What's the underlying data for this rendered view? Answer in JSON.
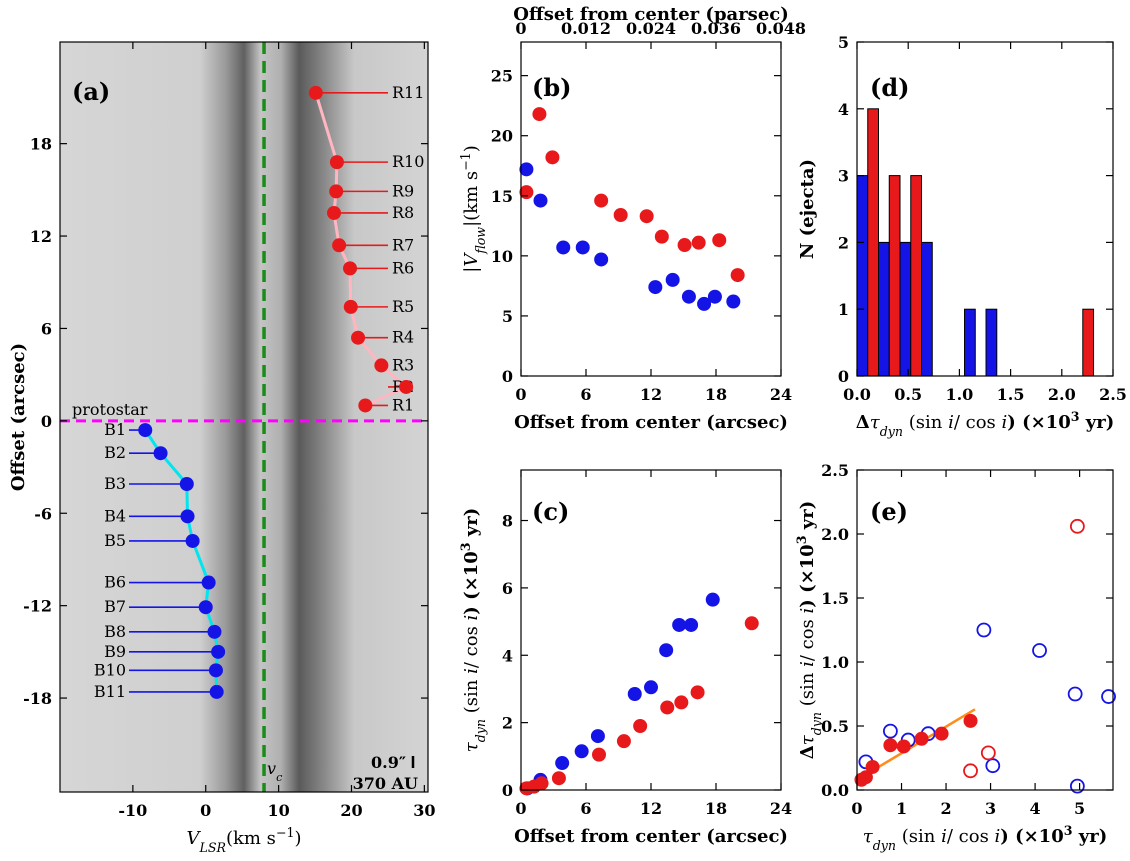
{
  "chart_data": [
    {
      "type": "scatter",
      "label": "(a)",
      "xlabel": [
        {
          "text": "V",
          "style": "it"
        },
        {
          "text": "LSR",
          "style": "sub it"
        },
        {
          "text": "(km s",
          "style": "rm"
        },
        {
          "text": "−1",
          "style": "sup rm"
        },
        {
          "text": ")",
          "style": "rm"
        }
      ],
      "ylabel": "Offset (arcsec)",
      "xlim": [
        -20,
        30.5
      ],
      "ylim": [
        -24.1,
        24.6
      ],
      "xticks": [
        -10,
        0,
        10,
        20,
        30
      ],
      "yticks": [
        -18,
        -12,
        -6,
        0,
        6,
        12,
        18
      ],
      "series": [
        {
          "color": "#e8191b",
          "curve_color": "#ffb6c1",
          "label_side": "right",
          "labels": [
            "R1",
            "R2",
            "R3",
            "R4",
            "R5",
            "R6",
            "R7",
            "R8",
            "R9",
            "R10",
            "R11"
          ],
          "x": [
            21.9,
            27.5,
            24.1,
            20.9,
            19.9,
            19.8,
            18.3,
            17.6,
            17.9,
            18.0,
            15.1
          ],
          "values": [
            1.0,
            2.2,
            3.6,
            5.4,
            7.4,
            9.9,
            11.4,
            13.5,
            14.9,
            16.8,
            21.3
          ]
        },
        {
          "color": "#1414e6",
          "curve_color": "#00e5ee",
          "label_side": "left",
          "labels": [
            "B1",
            "B2",
            "B3",
            "B4",
            "B5",
            "B6",
            "B7",
            "B8",
            "B9",
            "B10",
            "B11"
          ],
          "x": [
            -8.3,
            -6.2,
            -2.6,
            -2.5,
            -1.8,
            0.4,
            0.0,
            1.2,
            1.7,
            1.4,
            1.5
          ],
          "values": [
            -0.6,
            -2.1,
            -4.1,
            -6.2,
            -7.8,
            -10.5,
            -12.1,
            -13.7,
            -15.0,
            -16.2,
            -17.6
          ]
        }
      ],
      "vline": {
        "value": 8,
        "color": "#1a8c1a",
        "label": [
          {
            "text": "v",
            "style": "it"
          },
          {
            "text": "c",
            "style": "sub it"
          }
        ]
      },
      "hline": {
        "value": 0,
        "color": "#ff00ff",
        "label": "protostar"
      },
      "scalebar": {
        "label": "0.9″",
        "sublabel": "370 AU"
      }
    },
    {
      "type": "scatter",
      "label": "(b)",
      "xlabel": "Offset from center (arcsec)",
      "x2label": "Offset from center (parsec)",
      "ylabel": [
        {
          "text": "|",
          "style": "rm"
        },
        {
          "text": "V",
          "style": "it"
        },
        {
          "text": "flow",
          "style": "sub it"
        },
        {
          "text": "|(km s",
          "style": "rm"
        },
        {
          "text": "−1",
          "style": "sup rm"
        },
        {
          "text": ")",
          "style": "rm"
        }
      ],
      "xlim": [
        0,
        24
      ],
      "ylim": [
        0,
        27.8
      ],
      "x2lim": [
        0,
        0.048
      ],
      "xticks": [
        0,
        6,
        12,
        18,
        24
      ],
      "yticks": [
        0,
        5,
        10,
        15,
        20,
        25
      ],
      "x2ticks": [
        0,
        0.012,
        0.024,
        0.036,
        0.048
      ],
      "series": [
        {
          "color": "#e8191b",
          "marker": "filled",
          "x": [
            0.5,
            1.7,
            2.9,
            7.4,
            9.2,
            11.6,
            13.0,
            15.1,
            16.4,
            18.3,
            20.0
          ],
          "values": [
            15.3,
            21.8,
            18.2,
            14.6,
            13.4,
            13.3,
            11.6,
            10.9,
            11.1,
            11.3,
            8.4
          ]
        },
        {
          "color": "#1414e6",
          "marker": "filled",
          "x": [
            0.5,
            1.8,
            3.9,
            5.7,
            7.4,
            12.4,
            14.0,
            15.5,
            16.9,
            17.9,
            19.6
          ],
          "values": [
            17.2,
            14.6,
            10.7,
            10.7,
            9.7,
            7.4,
            8.0,
            6.6,
            6.0,
            6.6,
            6.2
          ]
        }
      ]
    },
    {
      "type": "scatter",
      "label": "(c)",
      "xlabel": "Offset from center (arcsec)",
      "ylabel": [
        {
          "text": "τ",
          "style": "it"
        },
        {
          "text": "dyn",
          "style": "sub it"
        },
        {
          "text": " (sin ",
          "style": "rm"
        },
        {
          "text": "i",
          "style": "it"
        },
        {
          "text": "/ cos ",
          "style": "rm"
        },
        {
          "text": "i",
          "style": "it"
        },
        {
          "text": ") (×10",
          "style": ""
        },
        {
          "text": "3",
          "style": "sup"
        },
        {
          "text": " yr)",
          "style": ""
        }
      ],
      "xlim": [
        0,
        24
      ],
      "ylim": [
        0,
        9.5
      ],
      "xticks": [
        0,
        6,
        12,
        18,
        24
      ],
      "yticks": [
        0,
        2,
        4,
        6,
        8
      ],
      "series": [
        {
          "color": "#1414e6",
          "marker": "filled",
          "x": [
            0.6,
            1.8,
            3.8,
            5.6,
            7.1,
            10.5,
            12.0,
            13.4,
            14.6,
            15.7,
            17.7
          ],
          "values": [
            0.05,
            0.3,
            0.8,
            1.15,
            1.6,
            2.85,
            3.05,
            4.15,
            4.9,
            4.9,
            5.65
          ]
        },
        {
          "color": "#e8191b",
          "marker": "filled",
          "x": [
            0.5,
            1.2,
            1.9,
            3.5,
            7.2,
            9.5,
            11.0,
            13.5,
            14.8,
            16.3,
            21.3
          ],
          "values": [
            0.05,
            0.1,
            0.2,
            0.35,
            1.05,
            1.45,
            1.9,
            2.45,
            2.6,
            2.9,
            4.95
          ]
        }
      ]
    },
    {
      "type": "histogram",
      "label": "(d)",
      "xlabel": [
        {
          "text": "Δ",
          "style": ""
        },
        {
          "text": "τ",
          "style": "it"
        },
        {
          "text": "dyn",
          "style": "sub it"
        },
        {
          "text": " (sin ",
          "style": "rm"
        },
        {
          "text": "i",
          "style": "it"
        },
        {
          "text": "/ cos ",
          "style": "rm"
        },
        {
          "text": "i",
          "style": "it"
        },
        {
          "text": ") (×10",
          "style": ""
        },
        {
          "text": "3",
          "style": "sup"
        },
        {
          "text": " yr)",
          "style": ""
        }
      ],
      "ylabel": "N (ejecta)",
      "xlim": [
        0,
        2.5
      ],
      "ylim": [
        0,
        5
      ],
      "xticks": [
        {
          "value": 0,
          "label": "0.0"
        },
        0.5,
        {
          "value": 1,
          "label": "1.0"
        },
        1.5,
        {
          "value": 2,
          "label": "2.0"
        },
        2.5
      ],
      "yticks": [
        0,
        1,
        2,
        3,
        4,
        5
      ],
      "bins": [
        0,
        0.21,
        0.42,
        0.63,
        0.84,
        1.05,
        1.26,
        1.47,
        1.68,
        1.89,
        2.1,
        2.31
      ],
      "series": [
        {
          "color": "#1414e6",
          "values": [
            3,
            2,
            2,
            2,
            0,
            1,
            1,
            0,
            0,
            0,
            0
          ]
        },
        {
          "color": "#e8191b",
          "values": [
            4,
            3,
            3,
            0,
            0,
            0,
            0,
            0,
            0,
            0,
            1
          ]
        }
      ]
    },
    {
      "type": "scatter",
      "label": "(e)",
      "xlabel": [
        {
          "text": "τ",
          "style": "it"
        },
        {
          "text": "dyn",
          "style": "sub it"
        },
        {
          "text": " (sin ",
          "style": "rm"
        },
        {
          "text": "i",
          "style": "it"
        },
        {
          "text": "/ cos ",
          "style": "rm"
        },
        {
          "text": "i",
          "style": "it"
        },
        {
          "text": ") (×10",
          "style": ""
        },
        {
          "text": "3",
          "style": "sup"
        },
        {
          "text": " yr)",
          "style": ""
        }
      ],
      "ylabel": [
        {
          "text": "Δ",
          "style": ""
        },
        {
          "text": "τ",
          "style": "it"
        },
        {
          "text": "dyn",
          "style": "sub it"
        },
        {
          "text": " (sin ",
          "style": "rm"
        },
        {
          "text": "i",
          "style": "it"
        },
        {
          "text": "/ cos ",
          "style": "rm"
        },
        {
          "text": "i",
          "style": "it"
        },
        {
          "text": ") (×10",
          "style": ""
        },
        {
          "text": "3",
          "style": "sup"
        },
        {
          "text": " yr)",
          "style": ""
        }
      ],
      "xlim": [
        0,
        5.75
      ],
      "ylim": [
        0,
        2.5
      ],
      "xticks": [
        0,
        1,
        2,
        3,
        4,
        5
      ],
      "yticks": [
        {
          "value": 0,
          "label": "0.0"
        },
        0.5,
        {
          "value": 1,
          "label": "1.0"
        },
        1.5,
        {
          "value": 2,
          "label": "2.0"
        },
        2.5
      ],
      "series": [
        {
          "color": "#ff8c1a",
          "marker": "line",
          "x": [
            0.1,
            2.65
          ],
          "values": [
            0.1,
            0.63
          ]
        },
        {
          "color": "#1414e6",
          "marker": "open",
          "x": [
            0.2,
            0.75,
            1.15,
            1.6,
            2.85,
            3.05,
            4.1,
            4.9,
            4.95,
            5.65
          ],
          "values": [
            0.22,
            0.46,
            0.39,
            0.44,
            1.25,
            0.19,
            1.09,
            0.75,
            0.03,
            0.73
          ]
        },
        {
          "color": "#e8191b",
          "marker": "open",
          "x": [
            2.55,
            2.95,
            4.95
          ],
          "values": [
            0.15,
            0.29,
            2.06
          ]
        },
        {
          "color": "#e8191b",
          "marker": "filled",
          "x": [
            0.1,
            0.2,
            0.35,
            0.75,
            1.05,
            1.45,
            1.9,
            2.55
          ],
          "values": [
            0.08,
            0.1,
            0.18,
            0.35,
            0.34,
            0.4,
            0.44,
            0.54
          ]
        }
      ]
    }
  ]
}
